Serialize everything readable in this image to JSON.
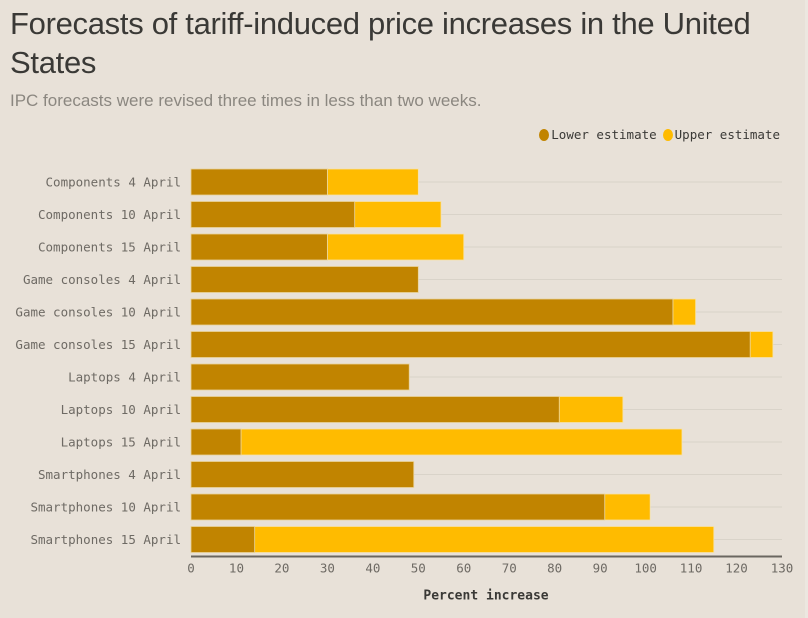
{
  "title": "Forecasts of tariff-induced price increases in the United States",
  "subtitle": "IPC forecasts were revised three times in less than two weeks.",
  "legend": [
    {
      "label": "Lower estimate",
      "color": "#c18400"
    },
    {
      "label": "Upper estimate",
      "color": "#ffbb00"
    }
  ],
  "chart_data": {
    "type": "bar",
    "orientation": "horizontal",
    "stacked": "overlay",
    "title": "Forecasts of tariff-induced price increases in the United States",
    "subtitle": "IPC forecasts were revised three times in less than two weeks.",
    "xlabel": "Percent increase",
    "ylabel": "",
    "xlim": [
      0,
      130
    ],
    "xticks": [
      0,
      10,
      20,
      30,
      40,
      50,
      60,
      70,
      80,
      90,
      100,
      110,
      120,
      130
    ],
    "grid": true,
    "legend_position": "top-right",
    "categories": [
      "Components 4 April",
      "Components 10 April",
      "Components 15 April",
      "Game consoles 4 April",
      "Game consoles 10 April",
      "Game consoles 15 April",
      "Laptops 4 April",
      "Laptops 10 April",
      "Laptops 15 April",
      "Smartphones 4 April",
      "Smartphones 10 April",
      "Smartphones 15 April"
    ],
    "series": [
      {
        "name": "Lower estimate",
        "color": "#c18400",
        "values": [
          30,
          36,
          30,
          50,
          106,
          123,
          48,
          81,
          11,
          49,
          91,
          14
        ]
      },
      {
        "name": "Upper estimate",
        "color": "#ffbb00",
        "values": [
          50,
          55,
          60,
          50,
          111,
          128,
          48,
          95,
          108,
          49,
          101,
          115
        ]
      }
    ]
  }
}
